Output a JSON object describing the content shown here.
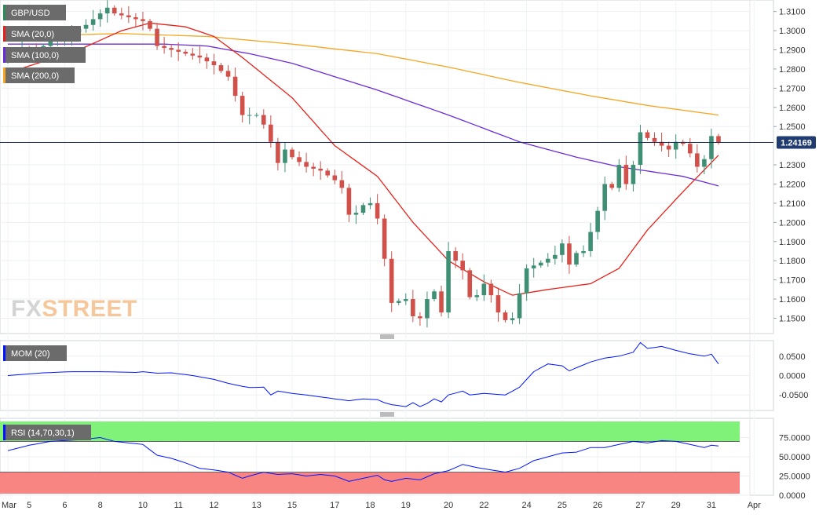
{
  "chart_data": {
    "type": "candlestick",
    "instrument": "GBP/USD",
    "last_price_label": "1.24169",
    "watermark": {
      "fx": "FX",
      "street": "STREET"
    },
    "price_axis": {
      "ylim": [
        1.142,
        1.316
      ],
      "ticks": [
        "1.3100",
        "1.3000",
        "1.2900",
        "1.2800",
        "1.2700",
        "1.2600",
        "1.2500",
        "1.2300",
        "1.2200",
        "1.2100",
        "1.2000",
        "1.1900",
        "1.1800",
        "1.1700",
        "1.1600",
        "1.1500"
      ]
    },
    "x_axis": {
      "bar_count": 103,
      "labels": [
        {
          "bar": 0,
          "text": "Mar"
        },
        {
          "bar": 3,
          "text": "5"
        },
        {
          "bar": 8,
          "text": "6"
        },
        {
          "bar": 13,
          "text": "8"
        },
        {
          "bar": 19,
          "text": "10"
        },
        {
          "bar": 24,
          "text": "11"
        },
        {
          "bar": 29,
          "text": "12"
        },
        {
          "bar": 35,
          "text": "13"
        },
        {
          "bar": 40,
          "text": "15"
        },
        {
          "bar": 46,
          "text": "17"
        },
        {
          "bar": 51,
          "text": "18"
        },
        {
          "bar": 56,
          "text": "19"
        },
        {
          "bar": 62,
          "text": "20"
        },
        {
          "bar": 67,
          "text": "22"
        },
        {
          "bar": 73,
          "text": "24"
        },
        {
          "bar": 78,
          "text": "25"
        },
        {
          "bar": 83,
          "text": "26"
        },
        {
          "bar": 89,
          "text": "27"
        },
        {
          "bar": 94,
          "text": "29"
        },
        {
          "bar": 99,
          "text": "31"
        },
        {
          "bar": 105,
          "text": "Apr"
        }
      ]
    },
    "indicators": [
      {
        "label": "SMA (20,0)",
        "color": "#e8221b"
      },
      {
        "label": "SMA (100,0)",
        "color": "#6a2cd8"
      },
      {
        "label": "SMA (200,0)",
        "color": "#f5a623"
      }
    ],
    "anchors": [
      [
        0,
        1.286
      ],
      [
        2,
        1.29
      ],
      [
        4,
        1.289
      ],
      [
        6,
        1.295
      ],
      [
        8,
        1.297
      ],
      [
        10,
        1.301
      ],
      [
        11,
        1.303
      ],
      [
        12,
        1.306
      ],
      [
        14,
        1.312
      ],
      [
        15,
        1.309
      ],
      [
        17,
        1.307
      ],
      [
        19,
        1.305
      ],
      [
        20,
        1.301
      ],
      [
        21,
        1.292
      ],
      [
        23,
        1.29
      ],
      [
        25,
        1.288
      ],
      [
        27,
        1.286
      ],
      [
        29,
        1.282
      ],
      [
        31,
        1.276
      ],
      [
        33,
        1.256
      ],
      [
        35,
        1.256
      ],
      [
        36,
        1.251
      ],
      [
        37,
        1.242
      ],
      [
        38,
        1.231
      ],
      [
        39,
        1.238
      ],
      [
        40,
        1.234
      ],
      [
        42,
        1.229
      ],
      [
        44,
        1.227
      ],
      [
        46,
        1.222
      ],
      [
        47,
        1.218
      ],
      [
        48,
        1.204
      ],
      [
        49,
        1.205
      ],
      [
        50,
        1.209
      ],
      [
        51,
        1.21
      ],
      [
        52,
        1.202
      ],
      [
        53,
        1.181
      ],
      [
        54,
        1.158
      ],
      [
        56,
        1.16
      ],
      [
        57,
        1.151
      ],
      [
        58,
        1.15
      ],
      [
        59,
        1.16
      ],
      [
        60,
        1.164
      ],
      [
        61,
        1.153
      ],
      [
        62,
        1.185
      ],
      [
        63,
        1.18
      ],
      [
        64,
        1.175
      ],
      [
        65,
        1.161
      ],
      [
        66,
        1.162
      ],
      [
        67,
        1.168
      ],
      [
        68,
        1.162
      ],
      [
        69,
        1.153
      ],
      [
        70,
        1.149
      ],
      [
        71,
        1.15
      ],
      [
        72,
        1.163
      ],
      [
        73,
        1.176
      ],
      [
        75,
        1.179
      ],
      [
        77,
        1.183
      ],
      [
        78,
        1.189
      ],
      [
        79,
        1.178
      ],
      [
        80,
        1.184
      ],
      [
        81,
        1.185
      ],
      [
        82,
        1.195
      ],
      [
        83,
        1.206
      ],
      [
        84,
        1.22
      ],
      [
        85,
        1.218
      ],
      [
        86,
        1.23
      ],
      [
        87,
        1.22
      ],
      [
        88,
        1.23
      ],
      [
        89,
        1.247
      ],
      [
        90,
        1.244
      ],
      [
        92,
        1.24
      ],
      [
        93,
        1.238
      ],
      [
        94,
        1.242
      ],
      [
        95,
        1.241
      ],
      [
        96,
        1.236
      ],
      [
        97,
        1.229
      ],
      [
        98,
        1.233
      ],
      [
        99,
        1.245
      ],
      [
        100,
        1.2417
      ]
    ],
    "sma20": [
      [
        0,
        1.278
      ],
      [
        10,
        1.29
      ],
      [
        16,
        1.3
      ],
      [
        20,
        1.304
      ],
      [
        25,
        1.302
      ],
      [
        29,
        1.297
      ],
      [
        33,
        1.286
      ],
      [
        40,
        1.265
      ],
      [
        46,
        1.24
      ],
      [
        52,
        1.224
      ],
      [
        57,
        1.2
      ],
      [
        62,
        1.18
      ],
      [
        67,
        1.169
      ],
      [
        71,
        1.162
      ],
      [
        76,
        1.165
      ],
      [
        82,
        1.168
      ],
      [
        86,
        1.176
      ],
      [
        90,
        1.196
      ],
      [
        95,
        1.216
      ],
      [
        100,
        1.235
      ]
    ],
    "sma100": [
      [
        0,
        1.293
      ],
      [
        12,
        1.293
      ],
      [
        22,
        1.293
      ],
      [
        28,
        1.292
      ],
      [
        34,
        1.288
      ],
      [
        40,
        1.283
      ],
      [
        52,
        1.269
      ],
      [
        62,
        1.256
      ],
      [
        72,
        1.242
      ],
      [
        80,
        1.234
      ],
      [
        86,
        1.229
      ],
      [
        95,
        1.224
      ],
      [
        100,
        1.219
      ]
    ],
    "sma200": [
      [
        0,
        1.297
      ],
      [
        16,
        1.2985
      ],
      [
        28,
        1.297
      ],
      [
        40,
        1.293
      ],
      [
        52,
        1.288
      ],
      [
        62,
        1.281
      ],
      [
        72,
        1.273
      ],
      [
        82,
        1.266
      ],
      [
        90,
        1.261
      ],
      [
        100,
        1.256
      ]
    ],
    "mom": {
      "label": "MOM (20)",
      "color": "#0014ff",
      "ticks": [
        "0.0500",
        "0.0000",
        "-0.0500"
      ],
      "ylim": [
        -0.09,
        0.09
      ],
      "anchors": [
        [
          0,
          0.0
        ],
        [
          5,
          0.007
        ],
        [
          9,
          0.01
        ],
        [
          13,
          0.01
        ],
        [
          16,
          0.009
        ],
        [
          18,
          0.008
        ],
        [
          19,
          0.01
        ],
        [
          21,
          0.006
        ],
        [
          23,
          0.007
        ],
        [
          26,
          0.0
        ],
        [
          29,
          -0.01
        ],
        [
          31,
          -0.02
        ],
        [
          33,
          -0.028
        ],
        [
          34,
          -0.031
        ],
        [
          36,
          -0.03
        ],
        [
          37,
          -0.05
        ],
        [
          38,
          -0.04
        ],
        [
          40,
          -0.046
        ],
        [
          42,
          -0.05
        ],
        [
          44,
          -0.055
        ],
        [
          46,
          -0.06
        ],
        [
          48,
          -0.065
        ],
        [
          50,
          -0.06
        ],
        [
          52,
          -0.062
        ],
        [
          53,
          -0.07
        ],
        [
          54,
          -0.075
        ],
        [
          56,
          -0.08
        ],
        [
          57,
          -0.07
        ],
        [
          58,
          -0.08
        ],
        [
          59,
          -0.072
        ],
        [
          60,
          -0.06
        ],
        [
          61,
          -0.068
        ],
        [
          62,
          -0.05
        ],
        [
          64,
          -0.04
        ],
        [
          65,
          -0.05
        ],
        [
          67,
          -0.046
        ],
        [
          70,
          -0.05
        ],
        [
          72,
          -0.03
        ],
        [
          73,
          -0.01
        ],
        [
          74,
          0.01
        ],
        [
          76,
          0.03
        ],
        [
          78,
          0.025
        ],
        [
          79,
          0.012
        ],
        [
          80,
          0.02
        ],
        [
          82,
          0.035
        ],
        [
          84,
          0.045
        ],
        [
          86,
          0.05
        ],
        [
          88,
          0.06
        ],
        [
          89,
          0.085
        ],
        [
          90,
          0.07
        ],
        [
          92,
          0.075
        ],
        [
          94,
          0.065
        ],
        [
          96,
          0.056
        ],
        [
          98,
          0.05
        ],
        [
          99,
          0.055
        ],
        [
          100,
          0.03
        ]
      ]
    },
    "rsi": {
      "label": "RSI (14,70,30,1)",
      "color": "#0014ff",
      "ticks": [
        "75.0000",
        "50.0000",
        "25.0000",
        "0.0000"
      ],
      "ylim": [
        0,
        100
      ],
      "overbought": 70,
      "oversold": 30,
      "anchors": [
        [
          0,
          58
        ],
        [
          3,
          65
        ],
        [
          6,
          70
        ],
        [
          10,
          72
        ],
        [
          13,
          75
        ],
        [
          15,
          70
        ],
        [
          17,
          68
        ],
        [
          19,
          66
        ],
        [
          21,
          52
        ],
        [
          23,
          48
        ],
        [
          25,
          42
        ],
        [
          27,
          35
        ],
        [
          29,
          33
        ],
        [
          31,
          30
        ],
        [
          33,
          22
        ],
        [
          34,
          25
        ],
        [
          36,
          30
        ],
        [
          38,
          27
        ],
        [
          40,
          28
        ],
        [
          42,
          25
        ],
        [
          44,
          27
        ],
        [
          46,
          25
        ],
        [
          48,
          18
        ],
        [
          50,
          22
        ],
        [
          52,
          26
        ],
        [
          53,
          20
        ],
        [
          54,
          18
        ],
        [
          56,
          22
        ],
        [
          58,
          20
        ],
        [
          60,
          28
        ],
        [
          62,
          32
        ],
        [
          64,
          40
        ],
        [
          66,
          36
        ],
        [
          68,
          33
        ],
        [
          70,
          30
        ],
        [
          72,
          35
        ],
        [
          74,
          45
        ],
        [
          76,
          50
        ],
        [
          78,
          55
        ],
        [
          80,
          56
        ],
        [
          82,
          62
        ],
        [
          84,
          62
        ],
        [
          86,
          66
        ],
        [
          88,
          70
        ],
        [
          90,
          68
        ],
        [
          92,
          71
        ],
        [
          94,
          70
        ],
        [
          96,
          66
        ],
        [
          98,
          62
        ],
        [
          99,
          65
        ],
        [
          100,
          64
        ]
      ]
    }
  }
}
